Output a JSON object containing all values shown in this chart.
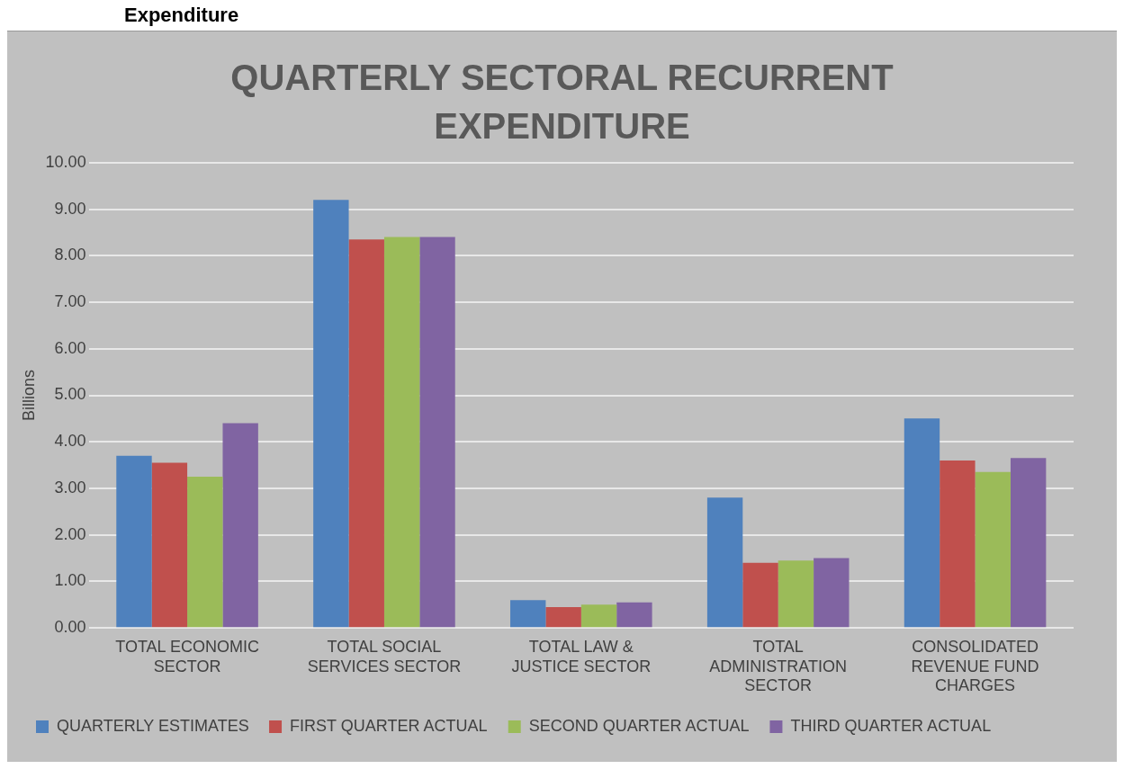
{
  "chart_data": {
    "type": "bar",
    "title": "QUARTERLY SECTORAL RECURRENT EXPENDITURE",
    "ylabel": "Billions",
    "annotations": [
      "Expenditure"
    ],
    "categories": [
      "TOTAL ECONOMIC SECTOR",
      "TOTAL SOCIAL SERVICES SECTOR",
      "TOTAL LAW & JUSTICE SECTOR",
      "TOTAL ADMINISTRATION SECTOR",
      "CONSOLIDATED REVENUE FUND CHARGES"
    ],
    "series": [
      {
        "name": "QUARTERLY ESTIMATES",
        "color": "#4f81bd",
        "values": [
          3.7,
          9.2,
          0.6,
          2.8,
          4.5
        ]
      },
      {
        "name": "FIRST QUARTER ACTUAL",
        "color": "#c0504d",
        "values": [
          3.55,
          8.35,
          0.45,
          1.4,
          3.6
        ]
      },
      {
        "name": "SECOND QUARTER ACTUAL",
        "color": "#9bbb59",
        "values": [
          3.25,
          8.4,
          0.5,
          1.45,
          3.35
        ]
      },
      {
        "name": "THIRD QUARTER ACTUAL",
        "color": "#8064a2",
        "values": [
          4.4,
          8.4,
          0.55,
          1.5,
          3.65
        ]
      }
    ],
    "ylim": [
      0,
      10
    ],
    "yticks": [
      {
        "value": 0,
        "label": "0.00"
      },
      {
        "value": 1,
        "label": "1.00"
      },
      {
        "value": 2,
        "label": "2.00"
      },
      {
        "value": 3,
        "label": "3.00"
      },
      {
        "value": 4,
        "label": "4.00"
      },
      {
        "value": 5,
        "label": "5.00"
      },
      {
        "value": 6,
        "label": "6.00"
      },
      {
        "value": 7,
        "label": "7.00"
      },
      {
        "value": 8,
        "label": "8.00"
      },
      {
        "value": 9,
        "label": "9.00"
      },
      {
        "value": 10,
        "label": "10.00"
      }
    ],
    "grid": "y",
    "legend": "bottom"
  }
}
